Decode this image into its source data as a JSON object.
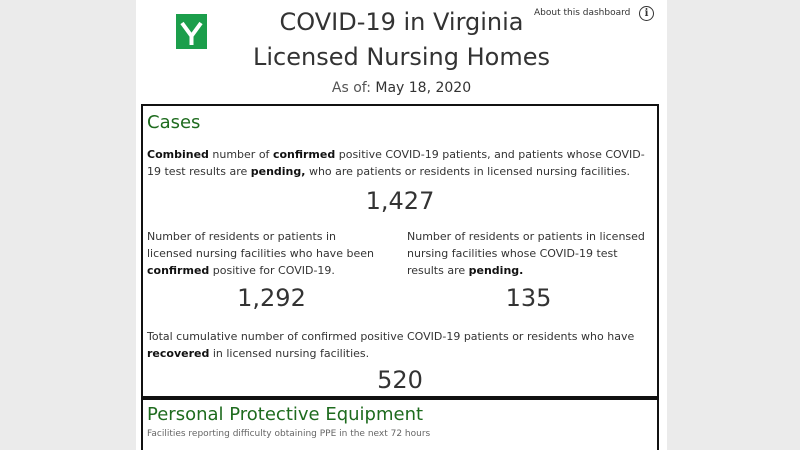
{
  "header": {
    "title_line1": "COVID-19 in Virginia",
    "title_line2": "Licensed Nursing Homes",
    "about_link": "About this dashboard",
    "info_icon": "i",
    "as_of_label": "As of:",
    "as_of_date": "May 18, 2020",
    "brand_color": "#1b9e4b"
  },
  "cases": {
    "title": "Cases",
    "combined": {
      "p1": "Combined",
      "p2": " number of ",
      "p3": "confirmed",
      "p4": " positive COVID-19 patients, and patients whose COVID-19 test results are ",
      "p5": "pending,",
      "p6": " who are patients or residents in licensed nursing facilities.",
      "value": "1,427"
    },
    "confirmed": {
      "p1": "Number of residents or patients in licensed nursing facilities who have been ",
      "p2": "confirmed",
      "p3": " positive for COVID-19.",
      "value": "1,292"
    },
    "pending": {
      "p1": "Number of residents or patients in licensed nursing facilities whose COVID-19 test results are ",
      "p2": "pending.",
      "value": "135"
    },
    "recovered": {
      "p1": "Total cumulative number of confirmed positive COVID-19 patients or residents who have ",
      "p2": "recovered",
      "p3": " in licensed nursing facilities.",
      "value": "520"
    }
  },
  "ppe": {
    "title": "Personal Protective Equipment",
    "subtitle": "Facilities reporting difficulty obtaining PPE in the next 72 hours"
  },
  "colors": {
    "section_title": "#1e6b1e",
    "background": "#ebebeb"
  }
}
